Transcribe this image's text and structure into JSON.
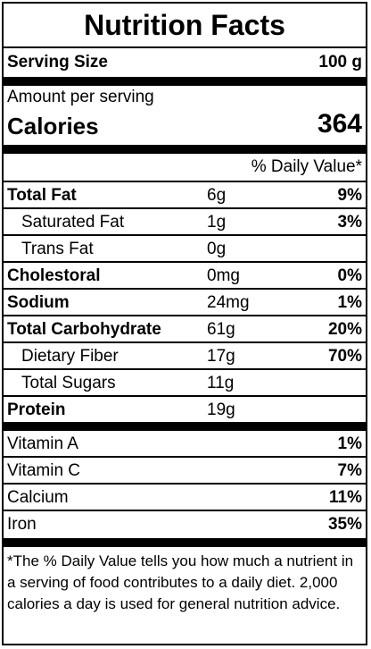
{
  "title": "Nutrition Facts",
  "serving": {
    "label": "Serving Size",
    "value": "100 g"
  },
  "amount_per_serving": "Amount per serving",
  "calories": {
    "label": "Calories",
    "value": "364"
  },
  "daily_value_header": "% Daily Value*",
  "nutrients": [
    {
      "name": "Total Fat",
      "amount": "6g",
      "dv": "9%"
    },
    {
      "name": "Saturated Fat",
      "amount": "1g",
      "dv": "3%"
    },
    {
      "name": "Trans Fat",
      "amount": "0g",
      "dv": ""
    },
    {
      "name": "Cholestoral",
      "amount": "0mg",
      "dv": "0%"
    },
    {
      "name": "Sodium",
      "amount": "24mg",
      "dv": "1%"
    },
    {
      "name": "Total Carbohydrate",
      "amount": "61g",
      "dv": "20%"
    },
    {
      "name": "Dietary Fiber",
      "amount": "17g",
      "dv": "70%"
    },
    {
      "name": "Total Sugars",
      "amount": "11g",
      "dv": ""
    },
    {
      "name": "Protein",
      "amount": "19g",
      "dv": ""
    }
  ],
  "vitamins": [
    {
      "name": "Vitamin A",
      "dv": "1%"
    },
    {
      "name": "Vitamin C",
      "dv": "7%"
    },
    {
      "name": "Calcium",
      "dv": "11%"
    },
    {
      "name": "Iron",
      "dv": "35%"
    }
  ],
  "footnote": "*The % Daily Value tells you how much a nutrient in a serving of food contributes to a daily diet. 2,000 calories a day is used for general nutrition advice."
}
